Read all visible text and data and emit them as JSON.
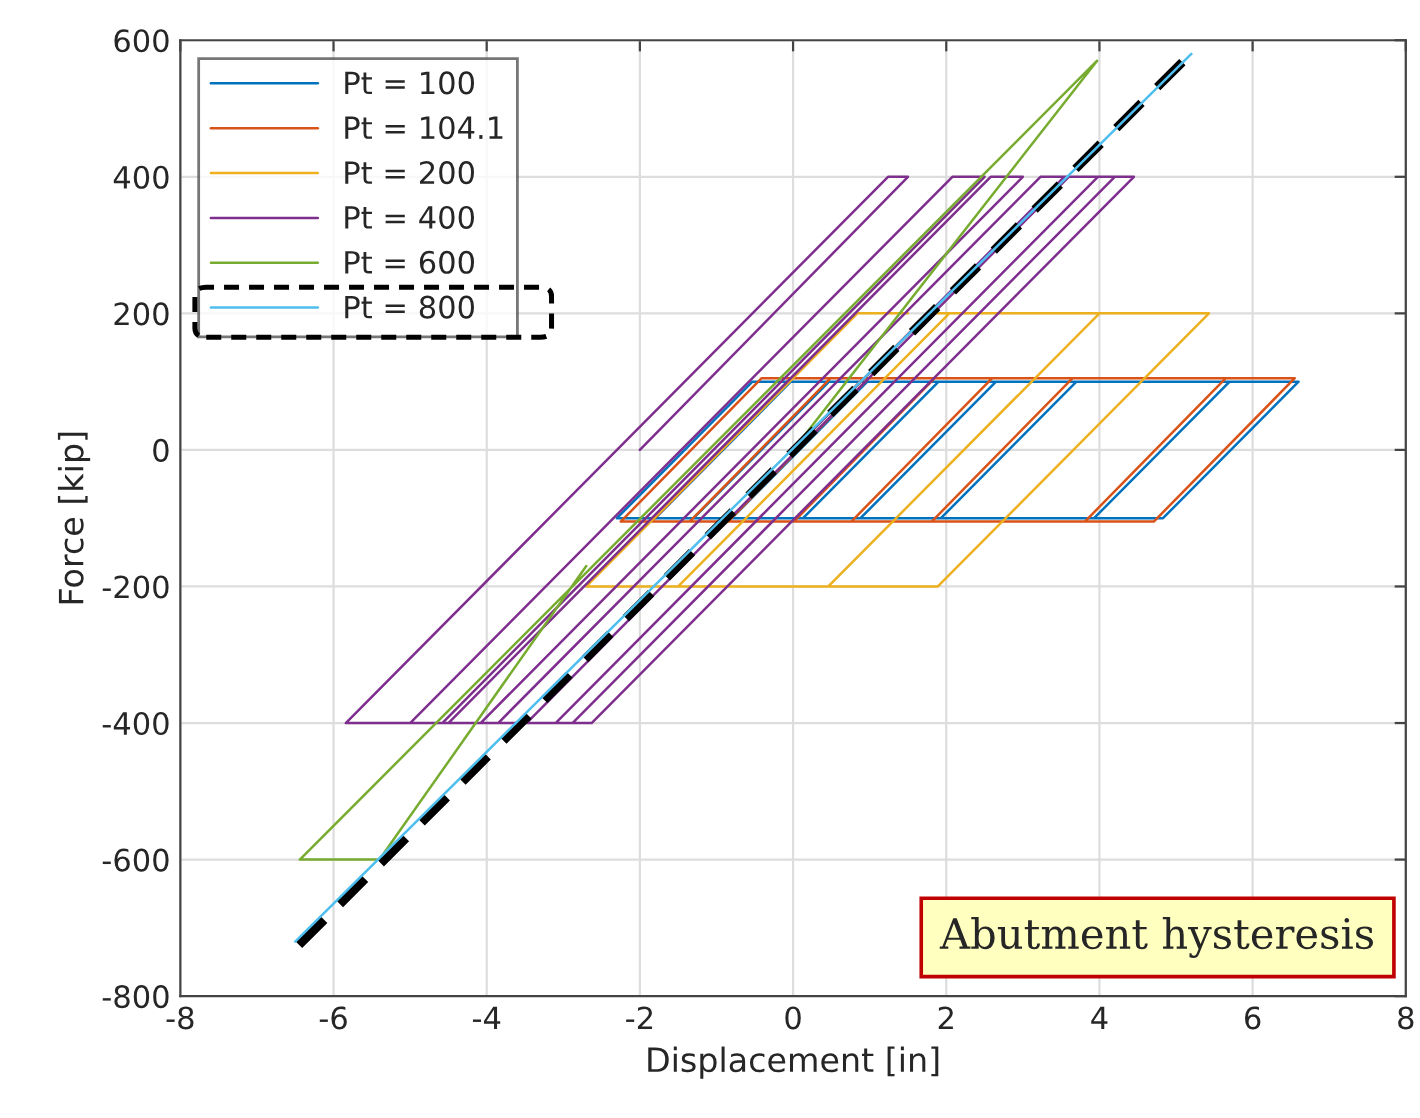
{
  "chart_data": {
    "type": "line",
    "xlabel": "Displacement [in]",
    "ylabel": "Force [kip]",
    "xlim": [
      -8,
      8
    ],
    "xticks": [
      -8,
      -6,
      -4,
      -2,
      0,
      2,
      4,
      6,
      8
    ],
    "ylim": [
      -800,
      600
    ],
    "yticks": [
      -800,
      -600,
      -400,
      -200,
      0,
      200,
      400,
      600
    ],
    "grid": true,
    "legend": "top left",
    "marker": "none",
    "line_style": "solid",
    "annotations": [
      "Abutment hysteresis"
    ],
    "series": [
      {
        "name": "Pt = 100",
        "color": "#0072bd",
        "x": [
          0,
          0.88,
          1.9,
          0.13,
          -0.8,
          0.97,
          2.65,
          0.88,
          -1.3,
          0.47,
          3.7,
          1.93,
          -1.8,
          -0.03,
          5.7,
          3.93,
          -2.3,
          -0.53,
          6.6,
          4.83,
          -2.3
        ],
        "values": [
          0,
          100,
          100,
          -100,
          -100,
          100,
          100,
          -100,
          -100,
          100,
          100,
          -100,
          -100,
          100,
          100,
          -100,
          -100,
          100,
          100,
          -100,
          -100
        ]
      },
      {
        "name": "Pt = 104.1",
        "color": "#d95319",
        "x": [
          0,
          0.92,
          1.85,
          0.01,
          -0.85,
          0.99,
          2.6,
          0.76,
          -1.35,
          0.49,
          3.65,
          1.81,
          -1.85,
          -0.01,
          5.65,
          3.81,
          -2.25,
          -0.41,
          6.55,
          4.71,
          -2.25
        ],
        "values": [
          0,
          105,
          105,
          -105,
          -105,
          105,
          105,
          -105,
          -105,
          105,
          105,
          -105,
          -105,
          105,
          105,
          -105,
          -105,
          105,
          105,
          -105,
          -105
        ]
      },
      {
        "name": "Pt = 200",
        "color": "#edb120",
        "x": [
          0,
          1.77,
          4.0,
          0.46,
          -1.5,
          2.04,
          5.43,
          1.89,
          -2.7,
          0.84,
          1.5
        ],
        "values": [
          0,
          200,
          200,
          -200,
          -200,
          200,
          200,
          -200,
          -200,
          200,
          200
        ]
      },
      {
        "name": "Pt = 400",
        "color": "#7e2f8e",
        "x": [
          0,
          3.54,
          4.45,
          -2.63,
          -3.1,
          3.98,
          4.2,
          -2.88,
          -3.85,
          3.23,
          3.6,
          -3.48,
          -4.5,
          2.58,
          3.0,
          -4.08,
          -5.0,
          2.08,
          2.5,
          -4.58,
          -5.84,
          1.24,
          1.5,
          -2.0
        ],
        "values": [
          0,
          400,
          400,
          -400,
          -400,
          400,
          400,
          -400,
          -400,
          400,
          400,
          -400,
          -400,
          400,
          400,
          -400,
          -400,
          400,
          400,
          -400,
          -400,
          400,
          400,
          0
        ]
      },
      {
        "name": "Pt = 600",
        "color": "#77ac30",
        "x": [
          0,
          3.97,
          -6.44,
          -5.4,
          -2.7
        ],
        "values": [
          0,
          570,
          -600,
          -600,
          -170
        ]
      },
      {
        "name": "Pt = 800",
        "color": "#4dbeee",
        "x": [
          -6.5,
          5.2
        ],
        "values": [
          -720,
          580
        ]
      },
      {
        "type": "line",
        "color": "#000000",
        "line_style": "dashed",
        "x": [
          -6.45,
          5.1
        ],
        "values": [
          -725,
          570
        ]
      }
    ]
  }
}
